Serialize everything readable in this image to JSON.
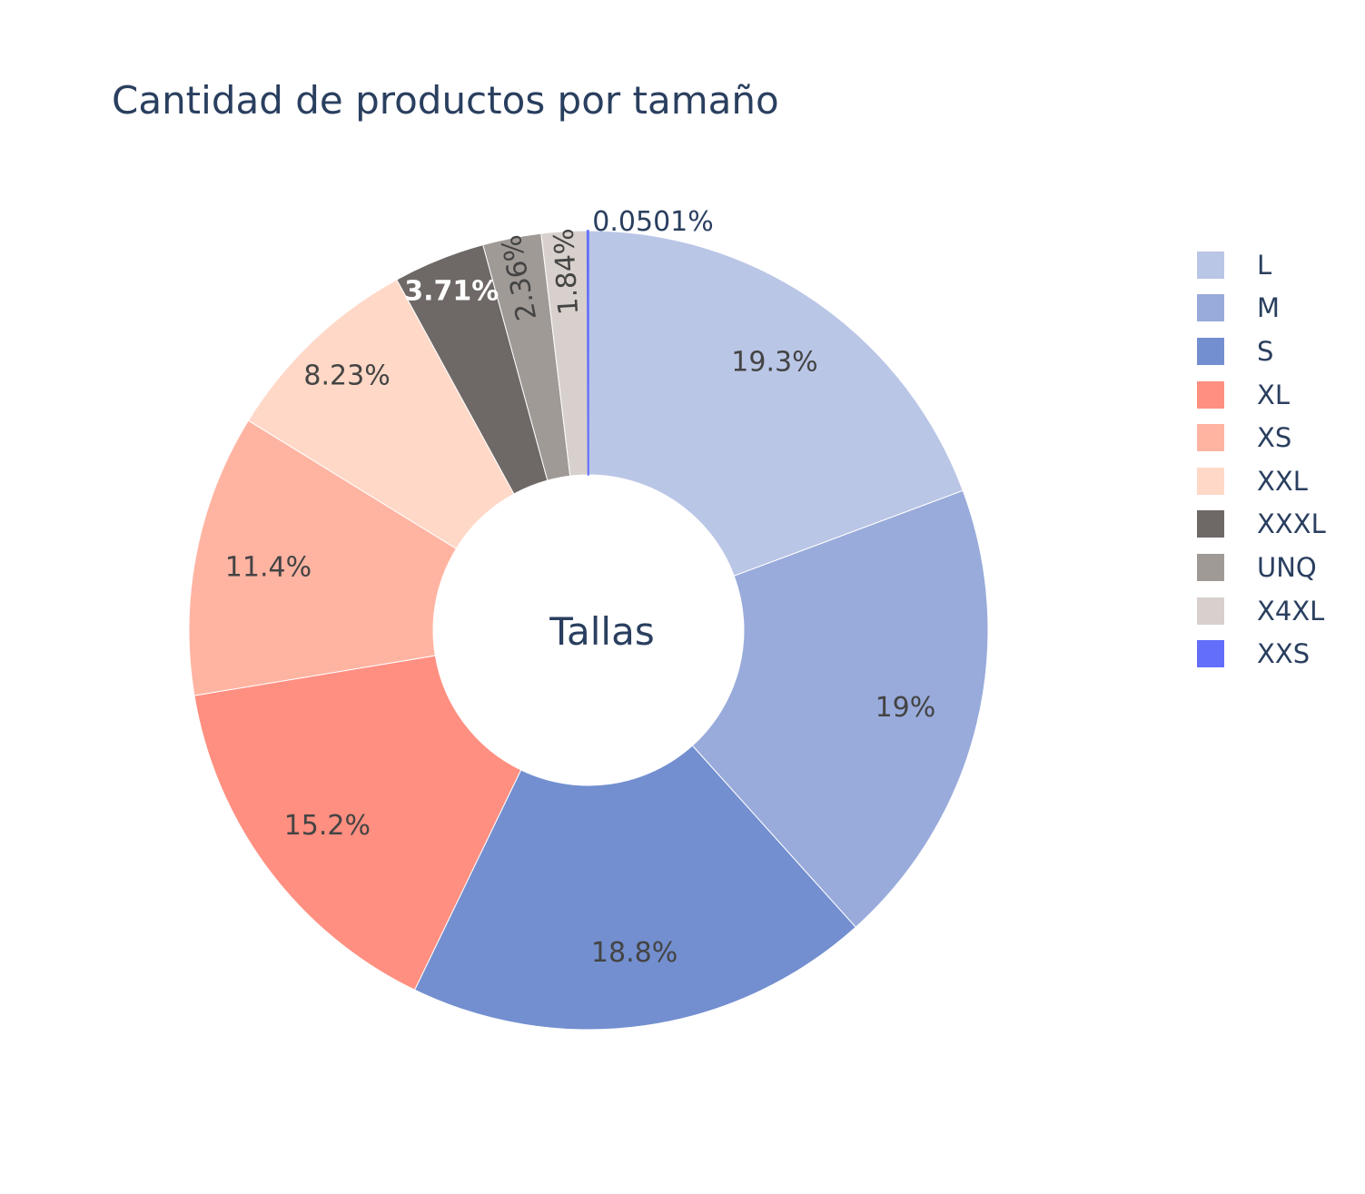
{
  "chart_data": {
    "type": "pie",
    "title": "Cantidad de productos por tamaño",
    "hole_label": "Tallas",
    "slices": [
      {
        "label": "L",
        "percent": 19.3,
        "text": "19.3%",
        "color": "#bac6e6"
      },
      {
        "label": "M",
        "percent": 19.0,
        "text": "19%",
        "color": "#99abdb"
      },
      {
        "label": "S",
        "percent": 18.8,
        "text": "18.8%",
        "color": "#738fd0"
      },
      {
        "label": "XL",
        "percent": 15.2,
        "text": "15.2%",
        "color": "#ff8f80"
      },
      {
        "label": "XS",
        "percent": 11.4,
        "text": "11.4%",
        "color": "#ffb4a2"
      },
      {
        "label": "XXL",
        "percent": 8.23,
        "text": "8.23%",
        "color": "#ffd8c7"
      },
      {
        "label": "XXXL",
        "percent": 3.71,
        "text": "3.71%",
        "color": "#6e6866"
      },
      {
        "label": "UNQ",
        "percent": 2.36,
        "text": "2.36%",
        "color": "#a09a97"
      },
      {
        "label": "X4XL",
        "percent": 1.84,
        "text": "1.84%",
        "color": "#d8d0cc"
      },
      {
        "label": "XXS",
        "percent": 0.0501,
        "text": "0.0501%",
        "color": "#636efa"
      }
    ],
    "legend_position": "right",
    "direction": "clockwise",
    "start": "top"
  }
}
